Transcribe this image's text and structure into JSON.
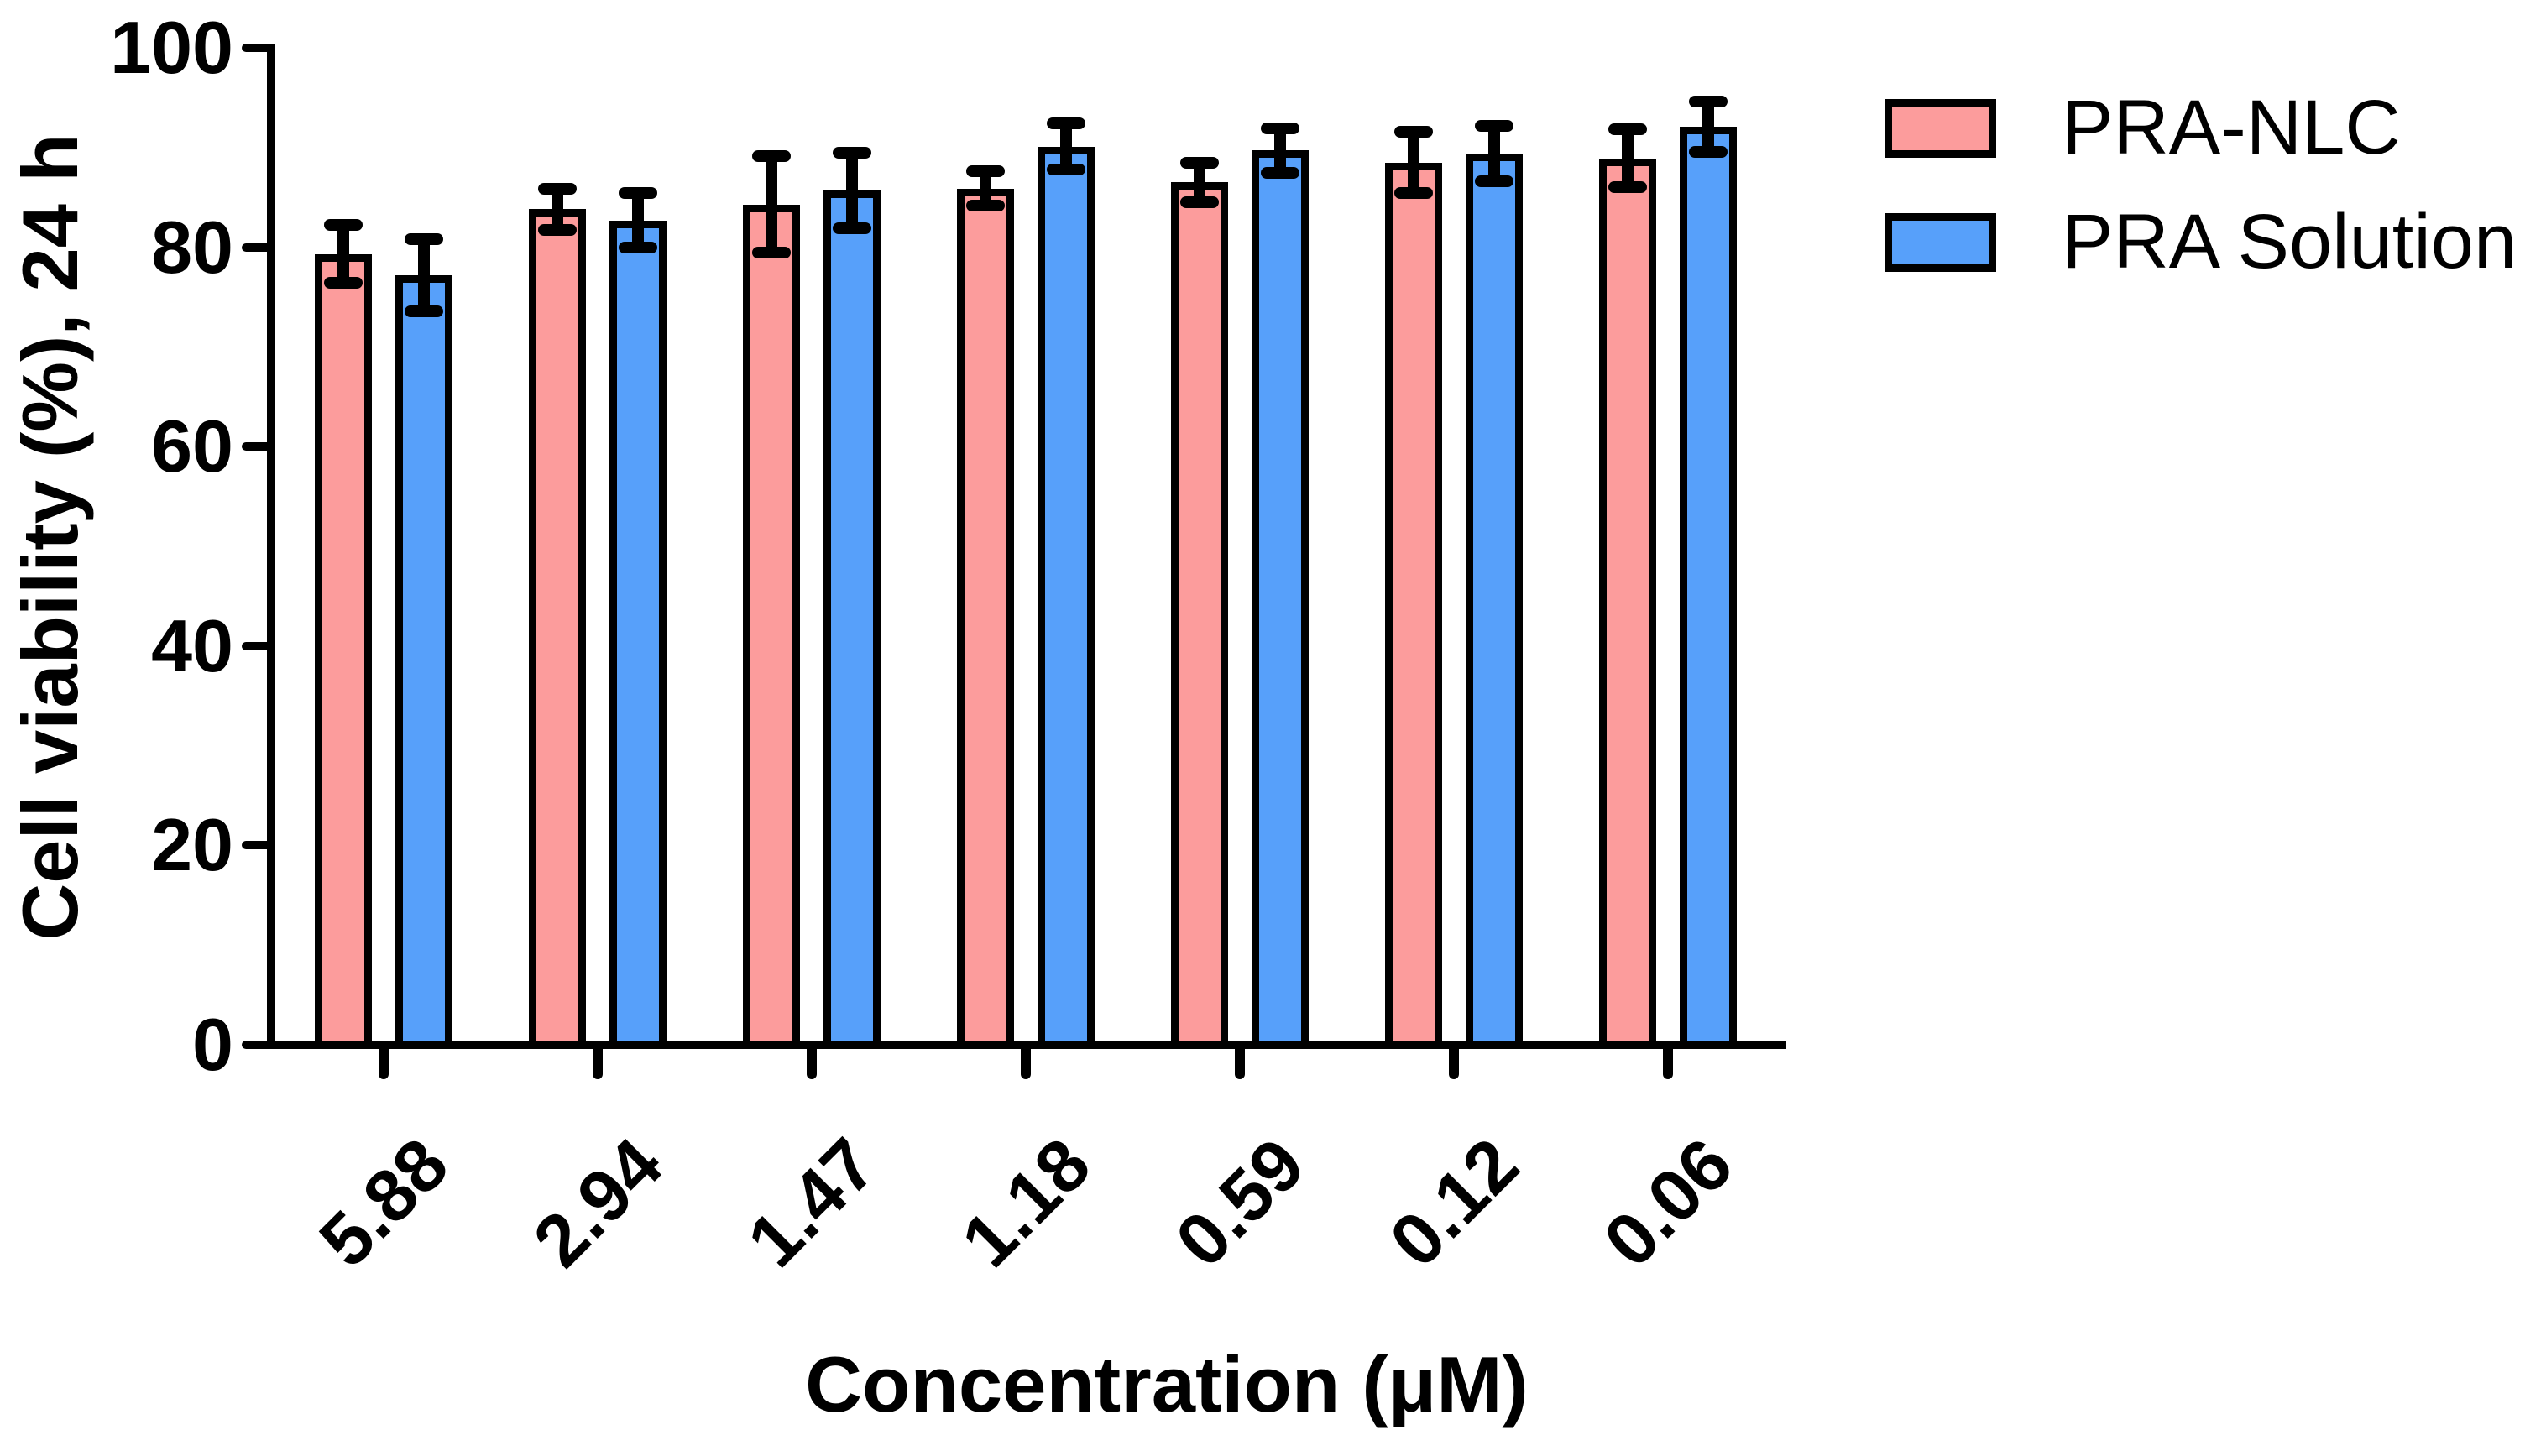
{
  "chart_data": {
    "type": "bar",
    "title": "",
    "xlabel": "Concentration (μM)",
    "ylabel": "Cell viability (%), 24 h",
    "categories": [
      "5.88",
      "2.94",
      "1.47",
      "1.18",
      "0.59",
      "0.12",
      "0.06"
    ],
    "series": [
      {
        "name": "PRA-NLC",
        "color": "#FC9C9C",
        "values": [
          79.3,
          83.8,
          84.3,
          85.9,
          86.5,
          88.5,
          88.9
        ],
        "errors": [
          2.9,
          2.1,
          4.8,
          1.7,
          2.0,
          3.1,
          2.9
        ]
      },
      {
        "name": "PRA Solution",
        "color": "#57A0FA",
        "values": [
          77.2,
          82.7,
          85.7,
          90.1,
          89.7,
          89.4,
          92.1
        ],
        "errors": [
          3.6,
          2.7,
          3.8,
          2.3,
          2.2,
          2.8,
          2.5
        ]
      }
    ],
    "ylim": [
      0,
      100
    ],
    "yticks": [
      0,
      20,
      40,
      60,
      80,
      100
    ],
    "error_bars": "sd, both directions, capped",
    "bar_outline_color": "#000000",
    "axis_color": "#000000",
    "grid": false,
    "legend_position": "top-right"
  }
}
